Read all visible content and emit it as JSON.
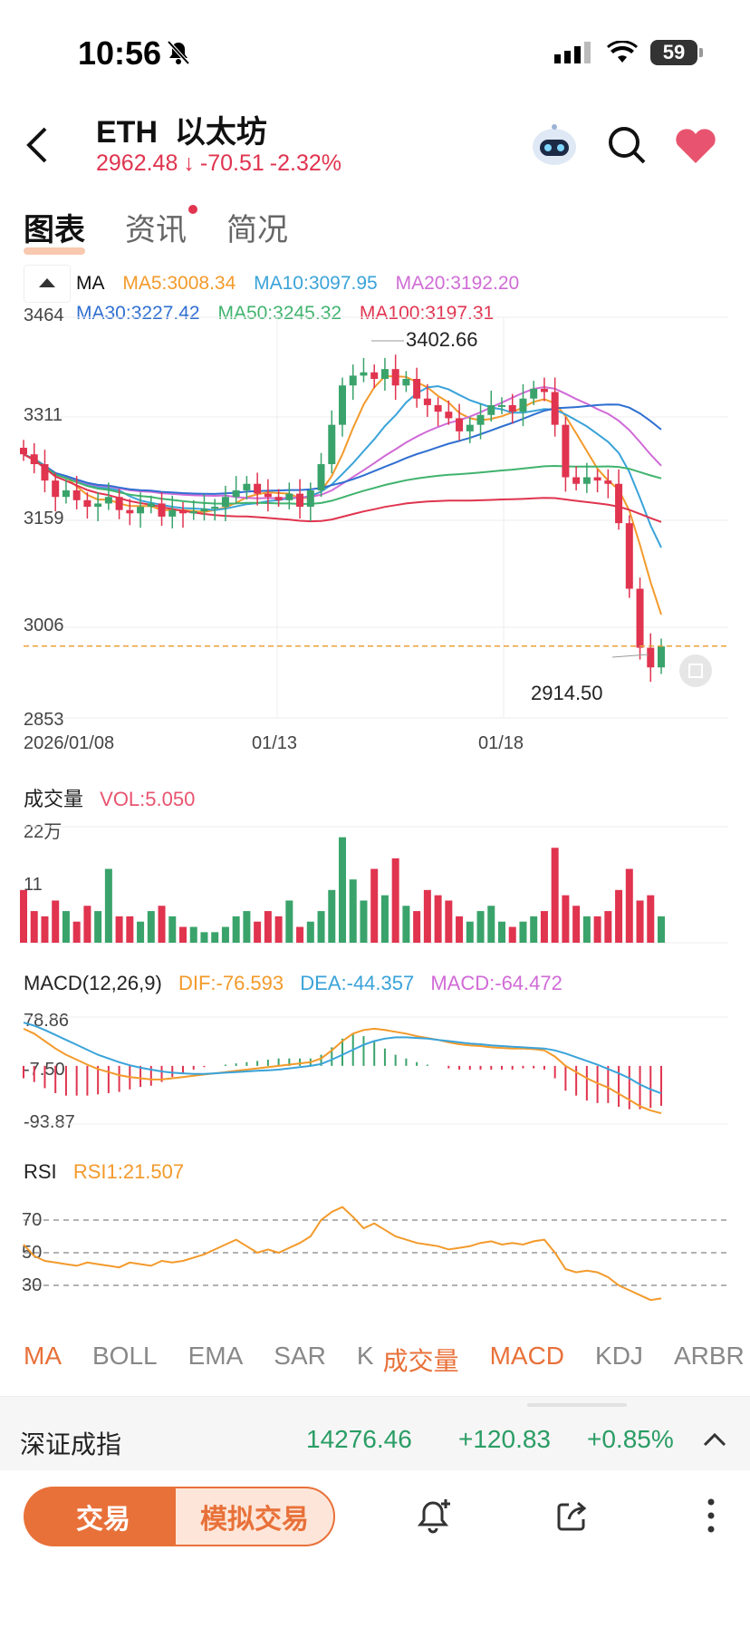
{
  "status_bar": {
    "time": "10:56",
    "battery": "59"
  },
  "header": {
    "symbol": "ETH",
    "name": "以太坊",
    "price": "2962.48",
    "arrow": "↓",
    "change": "-70.51",
    "change_pct": "-2.32%"
  },
  "tabs": [
    {
      "label": "图表"
    },
    {
      "label": "资讯"
    },
    {
      "label": "简况"
    }
  ],
  "ma_legend": {
    "title": "MA",
    "ma5": "MA5:3008.34",
    "ma10": "MA10:3097.95",
    "ma20": "MA20:3192.20",
    "ma30": "MA30:3227.42",
    "ma50": "MA50:3245.32",
    "ma100": "MA100:3197.31",
    "colors": {
      "ma5": "#f39a2b",
      "ma10": "#3aa3d9",
      "ma20": "#d06bd6",
      "ma30": "#2f6fd1",
      "ma50": "#40b36e",
      "ma100": "#e0344f"
    }
  },
  "price_chart": {
    "y_labels": [
      "3464",
      "3311",
      "3159",
      "3006",
      "2853"
    ],
    "x_labels": [
      "2026/01/08",
      "01/13",
      "01/18"
    ],
    "high_label": "3402.66",
    "low_label": "2914.50"
  },
  "volume": {
    "title": "成交量",
    "vol": "VOL:5.050",
    "y_top": "22万",
    "y_mid": "11"
  },
  "macd": {
    "title": "MACD(12,26,9)",
    "dif": "DIF:-76.593",
    "dea": "DEA:-44.357",
    "macd": "MACD:-64.472",
    "y_top": "78.86",
    "y_mid": "-7.50",
    "y_bottom": "-93.87"
  },
  "rsi": {
    "title": "RSI",
    "rsi1": "RSI1:21.507",
    "levels": [
      "70",
      "50",
      "30"
    ]
  },
  "indicator_tabs": [
    "MA",
    "BOLL",
    "EMA",
    "SAR",
    "K",
    "成交量",
    "MACD",
    "KDJ",
    "ARBR"
  ],
  "index_bar": {
    "name": "深证成指",
    "value": "14276.46",
    "change": "+120.83",
    "pct": "+0.85%"
  },
  "bottom": {
    "trade": "交易",
    "sim_trade": "模拟交易"
  },
  "chart_data": {
    "type": "candlestick",
    "title": "",
    "ylim": [
      2853,
      3464
    ],
    "x_range": [
      "2026/01/08",
      "01/21"
    ],
    "tick_labels": [
      "2026/01/08",
      "01/13",
      "01/18"
    ],
    "annotations": {
      "high": 3402.66,
      "low": 2914.5
    },
    "current_price_line": 2962.48,
    "close_series": [
      3255,
      3240,
      3215,
      3190,
      3200,
      3185,
      3175,
      3180,
      3190,
      3170,
      3165,
      3175,
      3180,
      3160,
      3170,
      3165,
      3168,
      3172,
      3175,
      3190,
      3200,
      3210,
      3195,
      3190,
      3185,
      3195,
      3175,
      3200,
      3240,
      3300,
      3360,
      3375,
      3380,
      3370,
      3385,
      3360,
      3370,
      3340,
      3330,
      3320,
      3310,
      3290,
      3300,
      3315,
      3330,
      3330,
      3320,
      3340,
      3355,
      3350,
      3300,
      3220,
      3210,
      3220,
      3215,
      3210,
      3150,
      3050,
      2960,
      2930,
      2962
    ],
    "volume_series": [
      10,
      6,
      5,
      8,
      6,
      4,
      7,
      6,
      14,
      5,
      5,
      4,
      6,
      7,
      5,
      3,
      3,
      2,
      2,
      3,
      5,
      6,
      4,
      6,
      5,
      8,
      3,
      4,
      6,
      10,
      20,
      12,
      8,
      14,
      9,
      16,
      7,
      6,
      10,
      9,
      8,
      5,
      4,
      6,
      7,
      4,
      3,
      4,
      5,
      6,
      18,
      9,
      7,
      5,
      5,
      6,
      10,
      14,
      8,
      9,
      5
    ],
    "rsi_series": [
      55,
      48,
      45,
      44,
      43,
      42,
      44,
      43,
      42,
      41,
      44,
      43,
      42,
      45,
      44,
      45,
      47,
      49,
      52,
      55,
      58,
      54,
      50,
      52,
      50,
      53,
      56,
      60,
      70,
      75,
      78,
      72,
      65,
      68,
      64,
      60,
      58,
      56,
      55,
      54,
      52,
      53,
      54,
      56,
      57,
      55,
      56,
      55,
      57,
      58,
      50,
      40,
      38,
      39,
      38,
      35,
      30,
      27,
      24,
      21,
      22
    ],
    "macd": {
      "dif": [
        60,
        52,
        40,
        28,
        18,
        10,
        2,
        -5,
        -10,
        -15,
        -18,
        -20,
        -22,
        -22,
        -20,
        -18,
        -16,
        -14,
        -12,
        -10,
        -8,
        -6,
        -4,
        -2,
        0,
        2,
        4,
        6,
        12,
        25,
        40,
        52,
        58,
        60,
        58,
        55,
        52,
        48,
        45,
        42,
        38,
        35,
        33,
        32,
        30,
        29,
        28,
        28,
        27,
        25,
        15,
        0,
        -10,
        -20,
        -28,
        -35,
        -45,
        -55,
        -65,
        -72,
        -76.593
      ],
      "dea": [
        70,
        65,
        58,
        50,
        42,
        34,
        26,
        18,
        12,
        6,
        1,
        -3,
        -6,
        -9,
        -11,
        -12,
        -13,
        -13,
        -12,
        -11,
        -10,
        -9,
        -8,
        -7,
        -6,
        -4,
        -2,
        0,
        3,
        10,
        18,
        26,
        34,
        40,
        44,
        46,
        46,
        45,
        44,
        42,
        40,
        38,
        36,
        35,
        33,
        32,
        31,
        30,
        29,
        28,
        25,
        20,
        14,
        8,
        2,
        -5,
        -12,
        -20,
        -30,
        -38,
        -44.357
      ]
    }
  }
}
